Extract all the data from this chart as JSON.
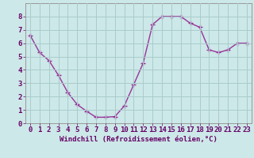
{
  "x": [
    0,
    1,
    2,
    3,
    4,
    5,
    6,
    7,
    8,
    9,
    10,
    11,
    12,
    13,
    14,
    15,
    16,
    17,
    18,
    19,
    20,
    21,
    22,
    23
  ],
  "y": [
    6.6,
    5.3,
    4.7,
    3.6,
    2.3,
    1.4,
    0.9,
    0.45,
    0.45,
    0.5,
    1.3,
    2.9,
    4.5,
    7.4,
    8.0,
    8.0,
    8.0,
    7.5,
    7.2,
    5.5,
    5.3,
    5.5,
    6.0,
    6.0
  ],
  "line_color": "#993399",
  "bg_color": "#cce8e8",
  "grid_color": "#aacccc",
  "xlabel": "Windchill (Refroidissement éolien,°C)",
  "xlim": [
    -0.5,
    23.5
  ],
  "ylim": [
    0,
    9
  ],
  "yticks": [
    0,
    1,
    2,
    3,
    4,
    5,
    6,
    7,
    8
  ],
  "xticks": [
    0,
    1,
    2,
    3,
    4,
    5,
    6,
    7,
    8,
    9,
    10,
    11,
    12,
    13,
    14,
    15,
    16,
    17,
    18,
    19,
    20,
    21,
    22,
    23
  ],
  "marker": "+",
  "markersize": 4,
  "linewidth": 1.0,
  "tick_fontsize": 6.5,
  "xlabel_fontsize": 6.5
}
